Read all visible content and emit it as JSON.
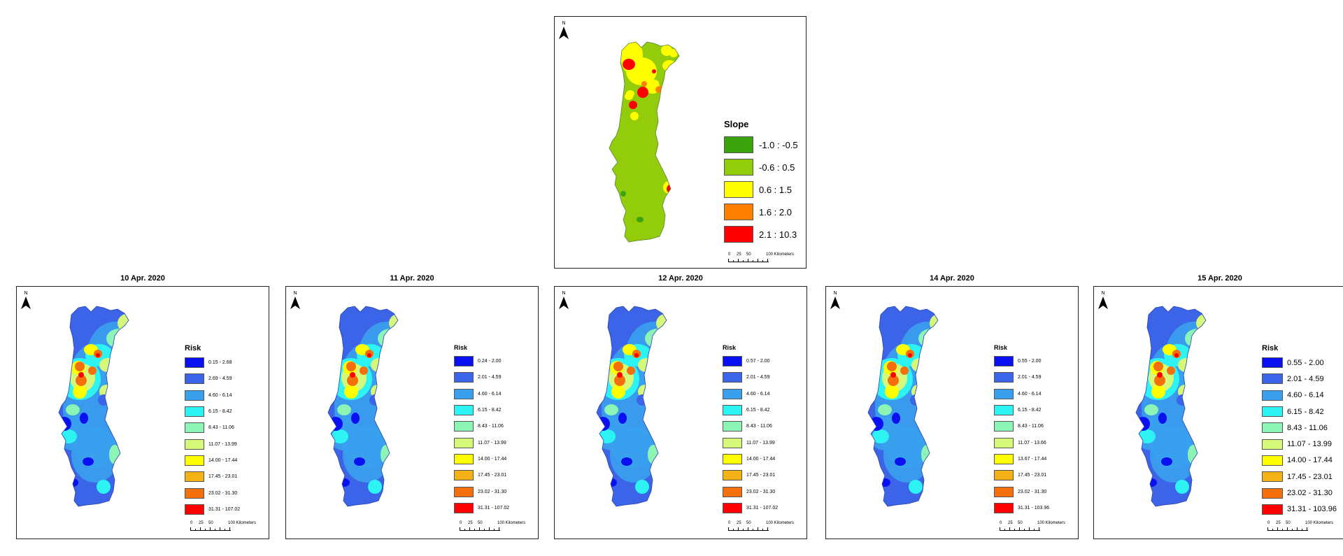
{
  "slope_map": {
    "north_label": "N",
    "legend_title": "Slope",
    "classes": [
      {
        "label": "-1.0 : -0.5",
        "color": "#3aa30e"
      },
      {
        "label": "-0.6 : 0.5",
        "color": "#93cc0a"
      },
      {
        "label": "0.6 : 1.5",
        "color": "#ffff00"
      },
      {
        "label": "1.6 : 2.0",
        "color": "#ff8000"
      },
      {
        "label": "2.1 : 10.3",
        "color": "#ff0000"
      }
    ],
    "scale": {
      "ticks": [
        "0",
        "25",
        "50",
        "100 Kilometers"
      ]
    }
  },
  "risk_maps": [
    {
      "title": "10 Apr. 2020",
      "north_label": "N",
      "legend_title": "Risk",
      "classes": [
        {
          "label": "0.15 - 2.68",
          "color": "#0b10f0"
        },
        {
          "label": "2.69 - 4.59",
          "color": "#3c64e8"
        },
        {
          "label": "4.60 - 6.14",
          "color": "#3aa0ee"
        },
        {
          "label": "6.15 - 8.42",
          "color": "#2ef3f3"
        },
        {
          "label": "8.43 - 11.06",
          "color": "#8cf4b4"
        },
        {
          "label": "11.07 - 13.99",
          "color": "#d6f87a"
        },
        {
          "label": "14.00 - 17.44",
          "color": "#ffff00"
        },
        {
          "label": "17.45 - 23.01",
          "color": "#f5b216"
        },
        {
          "label": "23.02 - 31.30",
          "color": "#f56f0c"
        },
        {
          "label": "31.31 - 107.02",
          "color": "#ff0000"
        }
      ],
      "scale": {
        "ticks": [
          "0",
          "25",
          "50",
          "100 Kilometers"
        ]
      }
    },
    {
      "title": "11 Apr. 2020",
      "north_label": "N",
      "legend_title": "Risk",
      "classes": [
        {
          "label": "0.24 - 2.00",
          "color": "#0b10f0"
        },
        {
          "label": "2.01 - 4.59",
          "color": "#3c64e8"
        },
        {
          "label": "4.60 - 6.14",
          "color": "#3aa0ee"
        },
        {
          "label": "6.15 - 8.42",
          "color": "#2ef3f3"
        },
        {
          "label": "8.43 - 11.06",
          "color": "#8cf4b4"
        },
        {
          "label": "11.07 - 13.99",
          "color": "#d6f87a"
        },
        {
          "label": "14.00 - 17.44",
          "color": "#ffff00"
        },
        {
          "label": "17.45 - 23.01",
          "color": "#f5b216"
        },
        {
          "label": "23.02 - 31.30",
          "color": "#f56f0c"
        },
        {
          "label": "31.31 - 107.02",
          "color": "#ff0000"
        }
      ],
      "scale": {
        "ticks": [
          "0",
          "25",
          "50",
          "100 Kilometers"
        ]
      }
    },
    {
      "title": "12 Apr. 2020",
      "north_label": "N",
      "legend_title": "Risk",
      "classes": [
        {
          "label": "0.57 - 2.00",
          "color": "#0b10f0"
        },
        {
          "label": "2.01 - 4.59",
          "color": "#3c64e8"
        },
        {
          "label": "4.60 - 6.14",
          "color": "#3aa0ee"
        },
        {
          "label": "6.15 - 8.42",
          "color": "#2ef3f3"
        },
        {
          "label": "8.43 - 11.06",
          "color": "#8cf4b4"
        },
        {
          "label": "11.07 - 13.99",
          "color": "#d6f87a"
        },
        {
          "label": "14.00 - 17.44",
          "color": "#ffff00"
        },
        {
          "label": "17.45 - 23.01",
          "color": "#f5b216"
        },
        {
          "label": "23.02 - 31.30",
          "color": "#f56f0c"
        },
        {
          "label": "31.31 - 107.02",
          "color": "#ff0000"
        }
      ],
      "scale": {
        "ticks": [
          "0",
          "25",
          "50",
          "100 Kilometers"
        ]
      }
    },
    {
      "title": "14 Apr. 2020",
      "north_label": "N",
      "legend_title": "Risk",
      "classes": [
        {
          "label": "0.55 - 2.00",
          "color": "#0b10f0"
        },
        {
          "label": "2.01 - 4.59",
          "color": "#3c64e8"
        },
        {
          "label": "4.60 - 6.14",
          "color": "#3aa0ee"
        },
        {
          "label": "6.15 - 8.42",
          "color": "#2ef3f3"
        },
        {
          "label": "8.43 - 11.06",
          "color": "#8cf4b4"
        },
        {
          "label": "11.07 - 13.66",
          "color": "#d6f87a"
        },
        {
          "label": "13.67 - 17.44",
          "color": "#ffff00"
        },
        {
          "label": "17.45 - 23.01",
          "color": "#f5b216"
        },
        {
          "label": "23.02 - 31.30",
          "color": "#f56f0c"
        },
        {
          "label": "31.31 - 103.96",
          "color": "#ff0000"
        }
      ],
      "scale": {
        "ticks": [
          "0",
          "25",
          "50",
          "100 Kilometers"
        ]
      }
    },
    {
      "title": "15 Apr. 2020",
      "north_label": "N",
      "legend_title": "Risk",
      "classes": [
        {
          "label": "0.55 - 2.00",
          "color": "#0b10f0"
        },
        {
          "label": "2.01 - 4.59",
          "color": "#3c64e8"
        },
        {
          "label": "4.60 - 6.14",
          "color": "#3aa0ee"
        },
        {
          "label": "6.15 - 8.42",
          "color": "#2ef3f3"
        },
        {
          "label": "8.43 - 11.06",
          "color": "#8cf4b4"
        },
        {
          "label": "11.07 - 13.99",
          "color": "#d6f87a"
        },
        {
          "label": "14.00 - 17.44",
          "color": "#ffff00"
        },
        {
          "label": "17.45 - 23.01",
          "color": "#f5b216"
        },
        {
          "label": "23.02 - 31.30",
          "color": "#f56f0c"
        },
        {
          "label": "31.31 - 103.96",
          "color": "#ff0000"
        }
      ],
      "scale": {
        "ticks": [
          "0",
          "25",
          "50",
          "100 Kilometers"
        ]
      }
    }
  ]
}
